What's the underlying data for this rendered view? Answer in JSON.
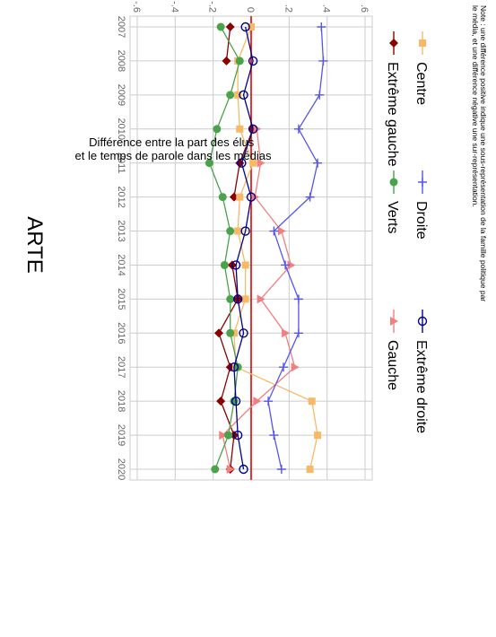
{
  "chart_data": {
    "type": "line",
    "title": "ARTE",
    "xlabel": "",
    "ylabel": "Différence entre la part des élus et le temps de parole dans les médias",
    "ylabel_lines": [
      "Différence entre la part des élus",
      "et le temps de parole dans les médias"
    ],
    "x": [
      2007,
      2008,
      2009,
      2010,
      2011,
      2012,
      2013,
      2014,
      2015,
      2016,
      2017,
      2018,
      2019,
      2020
    ],
    "x_tick_labels": [
      "2007",
      "2008",
      "2009",
      "2010",
      "2011",
      "2012",
      "2013",
      "2014",
      "2015",
      "2016",
      "2017",
      "2018",
      "2019",
      "2020"
    ],
    "y_ticks": [
      0.6,
      0.4,
      0.2,
      0.0,
      -0.2,
      -0.4,
      -0.6
    ],
    "y_tick_labels": [
      ".6",
      ".4",
      ".2",
      "0",
      "-.2",
      "-.4",
      "-.6"
    ],
    "ylim": [
      -0.6,
      0.6
    ],
    "orientation": "rotated 90 degrees counter-clockwise",
    "grid": true,
    "reference_line": 0,
    "legend_position": "bottom",
    "series": [
      {
        "name": "Extrême gauche",
        "color": "#8b0000",
        "marker": "diamond",
        "values": [
          -0.11,
          -0.13,
          null,
          0.01,
          -0.06,
          -0.09,
          null,
          -0.1,
          -0.07,
          -0.17,
          -0.11,
          -0.16,
          -0.09,
          -0.11
        ]
      },
      {
        "name": "Gauche",
        "color": "#f08080",
        "marker": "triangle",
        "values": [
          null,
          null,
          null,
          0.03,
          0.05,
          0.02,
          0.16,
          0.21,
          0.05,
          0.18,
          0.23,
          0.03,
          -0.15,
          -0.11
        ]
      },
      {
        "name": "Centre",
        "color": "#f8b967",
        "marker": "square",
        "values": [
          0.0,
          -0.07,
          -0.07,
          -0.06,
          0.01,
          -0.06,
          -0.07,
          -0.03,
          -0.03,
          -0.09,
          -0.08,
          0.32,
          0.35,
          0.31
        ]
      },
      {
        "name": "Verts",
        "color": "#4aa24a",
        "marker": "circle",
        "values": [
          -0.16,
          -0.06,
          -0.11,
          -0.18,
          -0.22,
          -0.15,
          -0.11,
          -0.14,
          -0.11,
          -0.11,
          -0.07,
          -0.09,
          -0.12,
          -0.19
        ]
      },
      {
        "name": "Droite",
        "color": "#5555ee",
        "marker": "plus",
        "values": [
          0.37,
          0.38,
          0.36,
          0.25,
          0.35,
          0.31,
          0.12,
          0.18,
          0.25,
          0.25,
          0.17,
          0.09,
          0.12,
          0.16
        ]
      },
      {
        "name": "Extrême droite",
        "color": "#00008b",
        "marker": "hollow-circle",
        "values": [
          -0.03,
          0.01,
          -0.04,
          0.01,
          -0.05,
          0.0,
          -0.03,
          -0.08,
          -0.07,
          -0.04,
          -0.09,
          -0.08,
          -0.07,
          -0.04
        ]
      }
    ],
    "note": "Note : une différence positive indique une sous-représentation de la famille politique par le média, et une différence négative une sur-représentation.",
    "note_lines": [
      "Note : une différence positive indique une sous-représentation de la famille politique par",
      "le média, et une différence négative une sur-représentation."
    ]
  }
}
